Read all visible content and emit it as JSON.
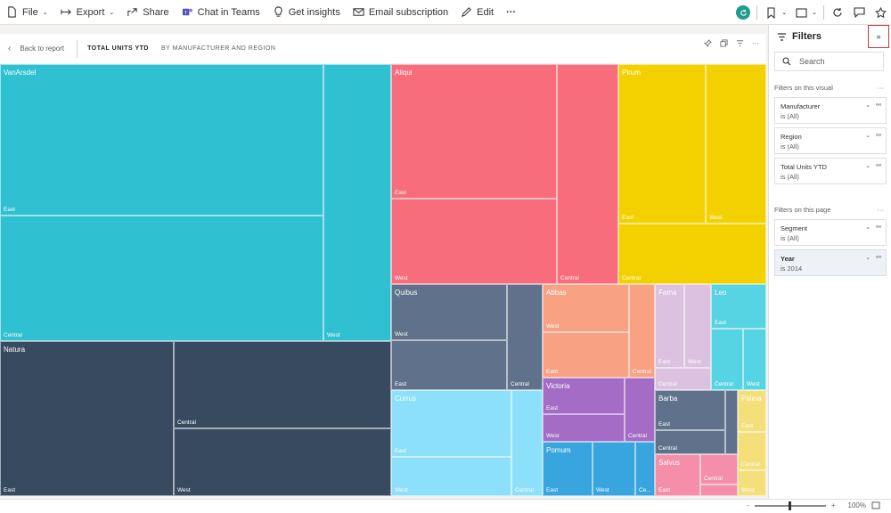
{
  "toolbar": {
    "file": "File",
    "export": "Export",
    "share": "Share",
    "chat": "Chat in Teams",
    "insights": "Get insights",
    "email": "Email subscription",
    "edit": "Edit",
    "more": "···"
  },
  "report": {
    "back": "Back to report",
    "title": "TOTAL UNITS YTD",
    "subtitle": "BY MANUFACTURER AND REGION"
  },
  "filters": {
    "title": "Filters",
    "search_placeholder": "Search",
    "visual_section": "Filters on this visual",
    "page_section": "Filters on this page",
    "visual_filters": [
      {
        "name": "Manufacturer",
        "value": "is (All)"
      },
      {
        "name": "Region",
        "value": "is (All)"
      },
      {
        "name": "Total Units YTD",
        "value": "is (All)"
      }
    ],
    "page_filters": [
      {
        "name": "Segment",
        "value": "is (All)"
      },
      {
        "name": "Year",
        "value": "is 2014"
      }
    ]
  },
  "status": {
    "zoom": "100%",
    "minus": "-",
    "plus": "+"
  },
  "colors": {
    "VanArsdel": "#2fc0d1",
    "Natura": "#374a5f",
    "Aliqui": "#f76d7b",
    "Pirum": "#f3d100",
    "Quibus": "#5f718b",
    "Abbas": "#f9a183",
    "Fama": "#dcc1e0",
    "Leo": "#57d4e3",
    "Victoria": "#a46cc4",
    "Currus": "#8ce0fa",
    "Pomum": "#39a5df",
    "Barba": "#5f718b",
    "Palma": "#f5df7a",
    "Salvus": "#f48ea9"
  },
  "treemap": [
    {
      "manufacturer": "VanArsdel",
      "regions": [
        "East",
        "Central",
        "West"
      ]
    },
    {
      "manufacturer": "Natura",
      "regions": [
        "East",
        "Central",
        "West"
      ]
    },
    {
      "manufacturer": "Aliqui",
      "regions": [
        "East",
        "West",
        "Central"
      ]
    },
    {
      "manufacturer": "Pirum",
      "regions": [
        "East",
        "West",
        "Central"
      ]
    },
    {
      "manufacturer": "Quibus",
      "regions": [
        "West",
        "East",
        "Central"
      ]
    },
    {
      "manufacturer": "Abbas",
      "regions": [
        "West",
        "East",
        "Central"
      ]
    },
    {
      "manufacturer": "Fama",
      "regions": [
        "East",
        "West",
        "Central"
      ]
    },
    {
      "manufacturer": "Leo",
      "regions": [
        "East",
        "Central",
        "West"
      ]
    },
    {
      "manufacturer": "Victoria",
      "regions": [
        "East",
        "West",
        "Central"
      ]
    },
    {
      "manufacturer": "Currus",
      "regions": [
        "East",
        "West",
        "Central"
      ]
    },
    {
      "manufacturer": "Pomum",
      "regions": [
        "East",
        "West",
        "Ce..."
      ]
    },
    {
      "manufacturer": "Barba",
      "regions": [
        "East",
        "Central"
      ]
    },
    {
      "manufacturer": "Palma",
      "regions": [
        "East",
        "Central",
        "West"
      ]
    },
    {
      "manufacturer": "Salvus",
      "regions": [
        "Central",
        "East"
      ]
    }
  ]
}
